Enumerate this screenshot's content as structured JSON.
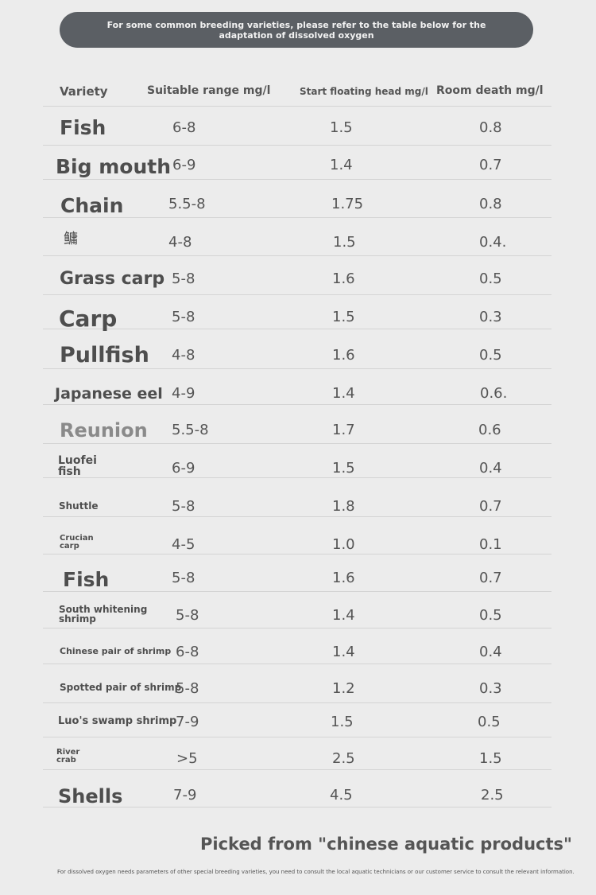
{
  "banner": "For some common breeding varieties, please refer to the table below for the adaptation of dissolved oxygen",
  "table": {
    "headers": [
      "Variety",
      "Suitable range mg/l",
      "Start floating head mg/l",
      "Room death mg/l"
    ],
    "rows": [
      {
        "variety": "Fish",
        "range": "6-8",
        "float": "1.5",
        "death": "0.8"
      },
      {
        "variety": "Big mouth",
        "range": "6-9",
        "float": "1.4",
        "death": "0.7"
      },
      {
        "variety": "Chain",
        "range": "5.5-8",
        "float": "1.75",
        "death": "0.8"
      },
      {
        "variety": "鳙",
        "range": "4-8",
        "float": "1.5",
        "death": "0.4."
      },
      {
        "variety": "Grass carp",
        "range": "5-8",
        "float": "1.6",
        "death": "0.5"
      },
      {
        "variety": "Carp",
        "range": "5-8",
        "float": "1.5",
        "death": "0.3"
      },
      {
        "variety": "Pullfish",
        "range": "4-8",
        "float": "1.6",
        "death": "0.5"
      },
      {
        "variety": "Japanese eel",
        "range": "4-9",
        "float": "1.4",
        "death": "0.6."
      },
      {
        "variety": "Reunion",
        "range": "5.5-8",
        "float": "1.7",
        "death": "0.6"
      },
      {
        "variety": "Luofei fish",
        "range": "6-9",
        "float": "1.5",
        "death": "0.4"
      },
      {
        "variety": "Shuttle",
        "range": "5-8",
        "float": "1.8",
        "death": "0.7"
      },
      {
        "variety": "Crucian carp",
        "range": "4-5",
        "float": "1.0",
        "death": "0.1"
      },
      {
        "variety": "Fish",
        "range": "5-8",
        "float": "1.6",
        "death": "0.7"
      },
      {
        "variety": "South whitening shrimp",
        "range": "5-8",
        "float": "1.4",
        "death": "0.5"
      },
      {
        "variety": "Chinese pair of shrimp",
        "range": "6-8",
        "float": "1.4",
        "death": "0.4"
      },
      {
        "variety": "Spotted pair of shrimp",
        "range": "5-8",
        "float": "1.2",
        "death": "0.3"
      },
      {
        "variety": "Luo's swamp shrimp",
        "range": "7-9",
        "float": "1.5",
        "death": "0.5"
      },
      {
        "variety": "River crab",
        "range": ">5",
        "float": "2.5",
        "death": "1.5"
      },
      {
        "variety": "Shells",
        "range": "7-9",
        "float": "4.5",
        "death": "2.5"
      }
    ]
  },
  "source": "Picked from \"chinese aquatic products\"",
  "footnote": "For dissolved oxygen needs parameters of other special breeding varieties, you need to consult the local aquatic technicians or our customer service to consult the relevant information."
}
